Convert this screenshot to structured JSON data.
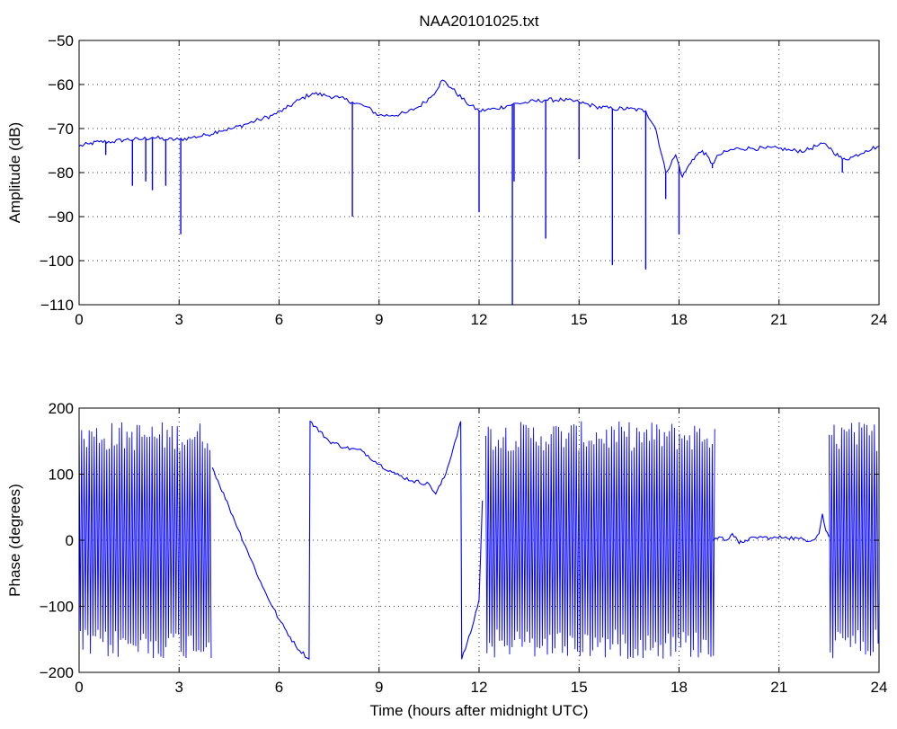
{
  "figure": {
    "title": "NAA20101025.txt",
    "line_color": "#0000ff"
  },
  "chart_data": [
    {
      "type": "line",
      "title": "NAA20101025.txt",
      "xlabel": "",
      "ylabel": "Amplitude (dB)",
      "xlim": [
        0,
        24
      ],
      "ylim": [
        -110,
        -50
      ],
      "grid": true,
      "grid_style": "dotted",
      "xticks": [
        0,
        3,
        6,
        9,
        12,
        15,
        18,
        21,
        24
      ],
      "yticks": [
        -110,
        -100,
        -90,
        -80,
        -70,
        -60,
        -50
      ],
      "series": [
        {
          "color": "#0000ff",
          "x": [
            0,
            0.3,
            0.6,
            1.0,
            1.4,
            1.8,
            2.2,
            2.6,
            3.0,
            3.4,
            3.8,
            4.2,
            4.6,
            5.0,
            5.4,
            5.8,
            6.2,
            6.6,
            7.0,
            7.4,
            7.8,
            8.2,
            8.6,
            9.0,
            9.4,
            9.8,
            10.2,
            10.6,
            10.9,
            11.2,
            11.6,
            12.0,
            12.5,
            13.0,
            13.5,
            14.0,
            14.5,
            15.0,
            15.5,
            16.0,
            16.5,
            17.0,
            17.3,
            17.6,
            17.9,
            18.1,
            18.4,
            18.7,
            19.0,
            19.2,
            19.5,
            19.8,
            20.2,
            20.6,
            21.0,
            21.4,
            21.8,
            22.1,
            22.4,
            22.6,
            22.9,
            23.2,
            23.6,
            24.0
          ],
          "y": [
            -74,
            -73.5,
            -73,
            -73,
            -72.5,
            -72.5,
            -72,
            -72.5,
            -72.5,
            -72,
            -71.5,
            -70.5,
            -70,
            -69,
            -68,
            -67,
            -65.5,
            -63.5,
            -62,
            -62.5,
            -63,
            -64,
            -65,
            -67,
            -67,
            -66.5,
            -65,
            -62.5,
            -59,
            -61,
            -64,
            -66,
            -65.5,
            -64.5,
            -64,
            -63.5,
            -63.5,
            -64,
            -65,
            -65.5,
            -65.5,
            -66,
            -70,
            -80,
            -76,
            -81,
            -77,
            -75,
            -78,
            -76,
            -75,
            -74.5,
            -74.5,
            -74.5,
            -74.5,
            -75,
            -75,
            -74,
            -73.5,
            -75,
            -77,
            -76.5,
            -75,
            -74
          ]
        }
      ],
      "dips": [
        {
          "x": 0.8,
          "y": -76
        },
        {
          "x": 1.6,
          "y": -83
        },
        {
          "x": 2.0,
          "y": -82
        },
        {
          "x": 2.2,
          "y": -84
        },
        {
          "x": 2.6,
          "y": -83
        },
        {
          "x": 3.05,
          "y": -94
        },
        {
          "x": 8.2,
          "y": -90
        },
        {
          "x": 12.0,
          "y": -89
        },
        {
          "x": 13.0,
          "y": -110
        },
        {
          "x": 13.05,
          "y": -82
        },
        {
          "x": 14.0,
          "y": -95
        },
        {
          "x": 15.0,
          "y": -77
        },
        {
          "x": 16.0,
          "y": -101
        },
        {
          "x": 17.0,
          "y": -102
        },
        {
          "x": 17.6,
          "y": -86
        },
        {
          "x": 18.0,
          "y": -94
        },
        {
          "x": 19.0,
          "y": -79
        },
        {
          "x": 22.9,
          "y": -80
        }
      ]
    },
    {
      "type": "line",
      "title": "",
      "xlabel": "Time (hours after midnight UTC)",
      "ylabel": "Phase (degrees)",
      "xlim": [
        0,
        24
      ],
      "ylim": [
        -200,
        200
      ],
      "grid": true,
      "grid_style": "dotted",
      "xticks": [
        0,
        3,
        6,
        9,
        12,
        15,
        18,
        21,
        24
      ],
      "yticks": [
        -200,
        -100,
        0,
        100,
        200
      ],
      "series": [
        {
          "color": "#0000ff",
          "x": [
            4.0,
            4.5,
            5.0,
            5.5,
            6.0,
            6.5,
            6.9,
            6.93,
            7.5,
            8.0,
            8.5,
            9.0,
            9.5,
            10.0,
            10.5,
            10.7,
            11.0,
            11.45,
            11.48,
            11.75,
            12.0,
            12.1
          ],
          "y": [
            110,
            50,
            -10,
            -70,
            -120,
            -160,
            -180,
            180,
            150,
            140,
            135,
            115,
            100,
            90,
            85,
            70,
            100,
            180,
            -180,
            -140,
            -90,
            60
          ]
        },
        {
          "color": "#0000ff",
          "x": [
            19.0,
            19.2,
            19.4,
            19.6,
            19.8,
            20.0,
            20.4,
            20.8,
            21.2,
            21.6,
            22.0,
            22.2,
            22.3,
            22.4,
            22.5
          ],
          "y": [
            0,
            5,
            0,
            10,
            -5,
            0,
            5,
            3,
            5,
            2,
            0,
            10,
            40,
            15,
            5
          ]
        }
      ],
      "wrapped_oscillation_intervals": [
        {
          "x_start": 0.0,
          "x_end": 4.0,
          "y_min": -180,
          "y_max": 180
        },
        {
          "x_start": 12.2,
          "x_end": 19.1,
          "y_min": -180,
          "y_max": 180
        },
        {
          "x_start": 22.5,
          "x_end": 24.0,
          "y_min": -180,
          "y_max": 180
        }
      ]
    }
  ]
}
